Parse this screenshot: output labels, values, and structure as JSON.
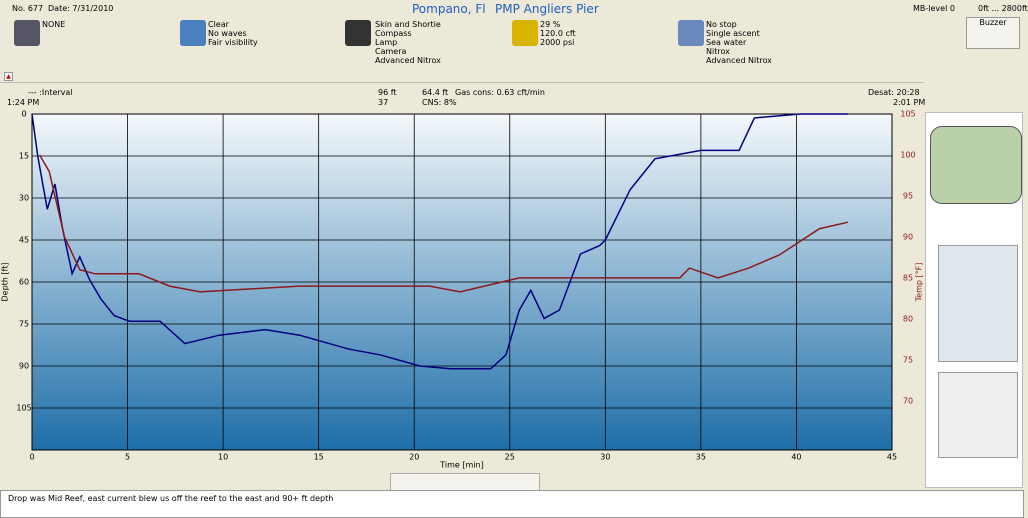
{
  "header": {
    "dive_no": "No. 677",
    "date": "Date: 7/31/2010",
    "location": "Pompano, Fl",
    "site": "PMP Angliers Pier",
    "mb_level": "MB-level 0",
    "altitude": "0ft ... 2800ft",
    "buzzer": "Buzzer"
  },
  "info": {
    "buddies": [
      "NONE"
    ],
    "weather": [
      "Clear",
      "No waves",
      "Fair visibility"
    ],
    "equipment": [
      "Skin and Shortie",
      "Compass",
      "Lamp",
      "Camera",
      "Advanced Nitrox"
    ],
    "gas": [
      "29 %",
      "120.0 cft",
      "2000 psi"
    ],
    "deco": [
      "No stop",
      "Single ascent",
      "Sea water",
      "Nitrox",
      "Advanced Nitrox"
    ]
  },
  "stats": {
    "interval": "--- :Interval",
    "start": "1:24 PM",
    "max_depth": "96 ft",
    "avg_depth": "64.4 ft",
    "water_temp": "37",
    "cns": "CNS: 8%",
    "gas_cons": "Gas cons: 0.63 cft/min",
    "desat": "Desat: 20:28",
    "end": "2:01 PM"
  },
  "chart_data": {
    "type": "line",
    "xlabel": "Time [min]",
    "ylabel": "Depth [ft]",
    "y2label": "Temp [°F]",
    "xlim": [
      0,
      45
    ],
    "xticks": [
      0,
      5,
      10,
      15,
      20,
      25,
      30,
      35,
      40,
      45
    ],
    "ylim": [
      0,
      120
    ],
    "yticks": [
      0,
      15,
      30,
      45,
      60,
      75,
      90,
      105
    ],
    "y_reversed": true,
    "y2lim": [
      64,
      105
    ],
    "y2ticks": [
      70,
      75,
      80,
      85,
      90,
      95,
      100,
      105
    ],
    "grid": true,
    "series": [
      {
        "color": "#000080",
        "x": [
          0,
          0.3,
          0.8,
          1.2,
          1.6,
          2.1,
          2.5,
          3.0,
          3.6,
          4.3,
          5.1,
          6.7,
          8.0,
          9.8,
          12.2,
          14.0,
          16.6,
          18.2,
          20.3,
          21.9,
          24.0,
          24.8,
          25.5,
          26.1,
          26.8,
          27.6,
          28.7,
          29.7,
          30.0,
          31.3,
          32.6,
          35.0,
          37.0,
          37.8,
          40.2,
          42.7
        ],
        "values": [
          0,
          15,
          34,
          25,
          41,
          57,
          51,
          59,
          66,
          72,
          74,
          74,
          82,
          79,
          77,
          79,
          84,
          86,
          90,
          91,
          91,
          86,
          70,
          63,
          73,
          70,
          50,
          47,
          45,
          27,
          16,
          13,
          13,
          1.4,
          0,
          0
        ]
      },
      {
        "color": "#8b1a1a",
        "axis": "y2",
        "x": [
          0.4,
          0.9,
          1.7,
          2.5,
          3.3,
          5.6,
          7.2,
          8.8,
          14,
          20.8,
          22.4,
          25.5,
          33.9,
          34.4,
          35.9,
          37.5,
          39.1,
          41.2,
          42.7
        ],
        "values": [
          100,
          98,
          90,
          86,
          85.5,
          85.5,
          84,
          83.3,
          84,
          84,
          83.3,
          85,
          85,
          86.2,
          85,
          86.2,
          87.8,
          91,
          91.8
        ]
      }
    ]
  },
  "comment": "Drop was Mid Reef, east current blew us off the reef to the east and 90+ ft depth"
}
